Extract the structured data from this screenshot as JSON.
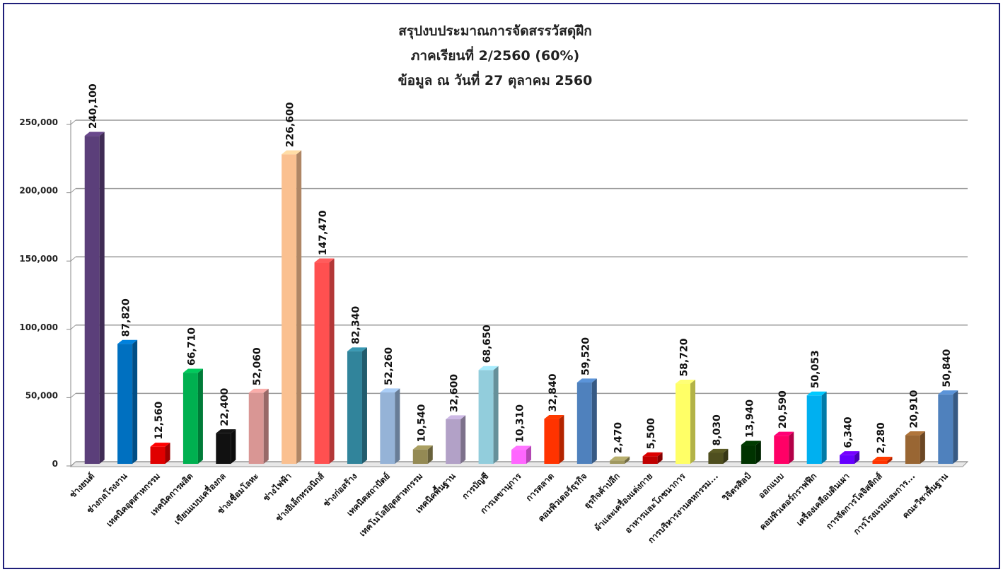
{
  "chart_data": {
    "type": "bar",
    "title": [
      "สรุปงบประมาณการจัดสรรวัสดุฝึก",
      "ภาคเรียนที่ 2/2560 (60%)",
      "ข้อมูล ณ วันที่  27  ตุลาคม  2560"
    ],
    "categories": [
      "ช่างยนต์",
      "ช่างกลโรงงาน",
      "เทคนิคอุตสาหกรรม",
      "เทคนิคการผลิต",
      "เขียนแบบเครื่องกล",
      "ช่างเชื่อมโลหะ",
      "ช่างไฟฟ้า",
      "ช่างอิเล็กทรอนิกส์",
      "ช่างก่อสร้าง",
      "เทคนิคสถาปัตย์",
      "เทคโนโลยีอุตสาหกรรม",
      "เทคนิคพื้นฐาน",
      "การบัญชี",
      "การเลขานุการ",
      "การตลาด",
      "คอมพิวเตอร์ธุรกิจ",
      "ธุรกิจค้าปลีก",
      "ผ้าและเครื่องแต่งกาย",
      "อาหารและโภชนาการ",
      "การบริหารงานคหกรรม...",
      "วิจิตรศิลป์",
      "ออกแบบ",
      "คอมพิวเตอร์กราฟฟิก",
      "เครื่องเคลือบดินเผา",
      "การจัดการโลจิสติกส์",
      "การโรงแรมและการ...",
      "คณะวิชาพื้นฐาน"
    ],
    "values": [
      240100,
      87820,
      12560,
      66710,
      22400,
      52060,
      226600,
      147470,
      82340,
      52260,
      10540,
      32600,
      68650,
      10310,
      32840,
      59520,
      2470,
      5500,
      58720,
      8030,
      13940,
      20590,
      50053,
      6340,
      2280,
      20910,
      50840
    ],
    "value_labels": [
      "240,100",
      "87,820",
      "12,560",
      "66,710",
      "22,400",
      "52,060",
      "226,600",
      "147,470",
      "82,340",
      "52,260",
      "10,540",
      "32,600",
      "68,650",
      "10,310",
      "32,840",
      "59,520",
      "2,470",
      "5,500",
      "58,720",
      "8,030",
      "13,940",
      "20,590",
      "50,053",
      "6,340",
      "2,280",
      "20,910",
      "50,840"
    ],
    "colors": [
      "#5b3f7a",
      "#0070c0",
      "#e00000",
      "#00b050",
      "#111111",
      "#d99694",
      "#fac090",
      "#ff5050",
      "#31849b",
      "#95b3d7",
      "#948a54",
      "#b2a1c7",
      "#92cddc",
      "#ff66ff",
      "#ff3300",
      "#4f81bd",
      "#a09860",
      "#c00000",
      "#ffff66",
      "#4f4f1f",
      "#003300",
      "#ff0066",
      "#00b0f0",
      "#6600ff",
      "#ff3300",
      "#996633",
      "#4f81bd"
    ],
    "ylim": [
      0,
      250000
    ],
    "yticks": [
      0,
      {
        "value": 50000,
        "label": "50,000"
      },
      {
        "value": 100000,
        "label": "100,000"
      },
      {
        "value": 150000,
        "label": "150,000"
      },
      {
        "value": 200000,
        "label": "200,000"
      },
      {
        "value": 250000,
        "label": "250,000"
      }
    ],
    "grid": true
  }
}
